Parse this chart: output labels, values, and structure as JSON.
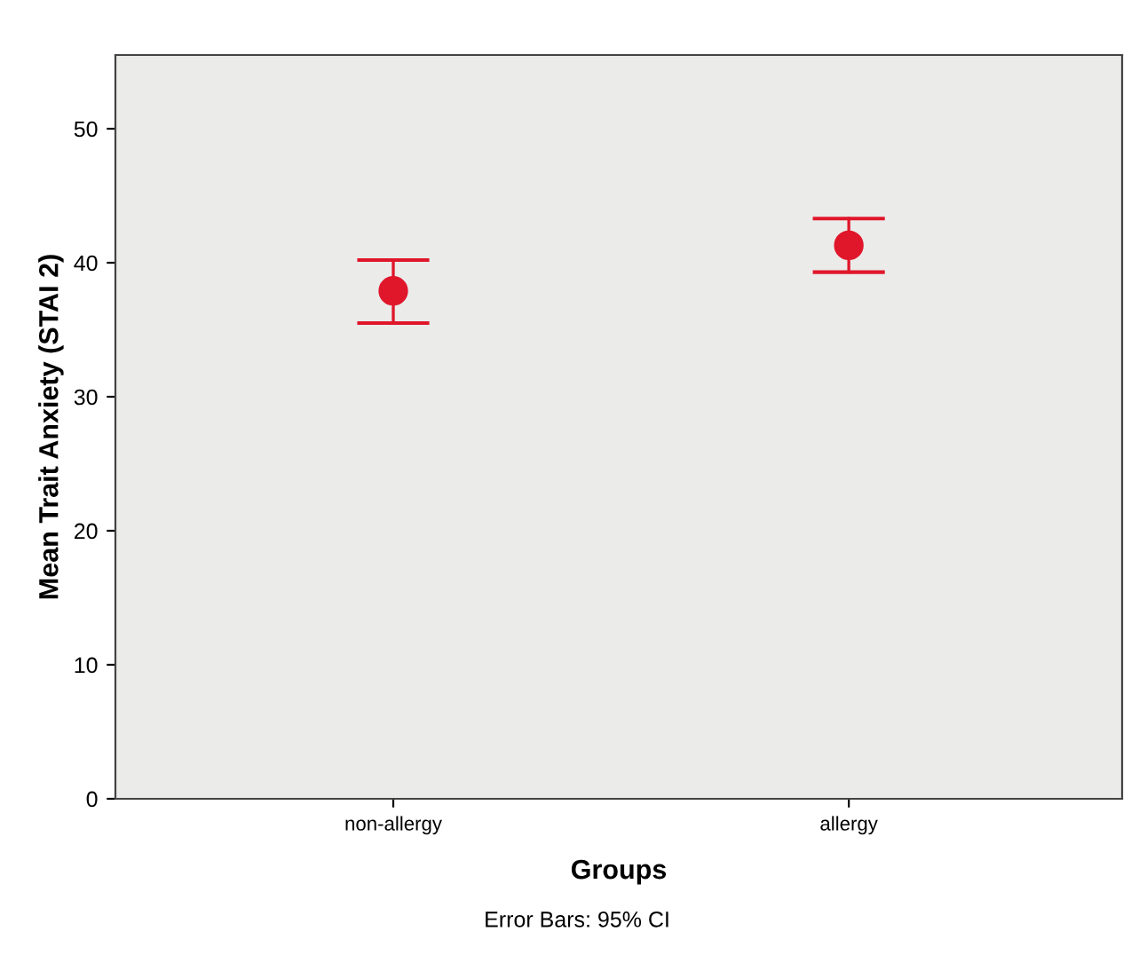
{
  "chart_data": {
    "type": "scatter",
    "xlabel": "Groups",
    "ylabel": "Mean Trait Anxiety (STAI 2)",
    "categories": [
      "non-allergy",
      "allergy"
    ],
    "series": [
      {
        "color": "#e0162b",
        "values": [
          37.9,
          41.3
        ],
        "errors": [
          [
            35.5,
            40.2
          ],
          [
            39.3,
            43.3
          ]
        ]
      }
    ],
    "ylim": [
      0,
      55.5
    ],
    "yticks": [
      0,
      10,
      20,
      30,
      40,
      50
    ],
    "grid": false,
    "legend": false,
    "marker": "circle",
    "annotations": [
      "Error Bars: 95% CI"
    ]
  }
}
